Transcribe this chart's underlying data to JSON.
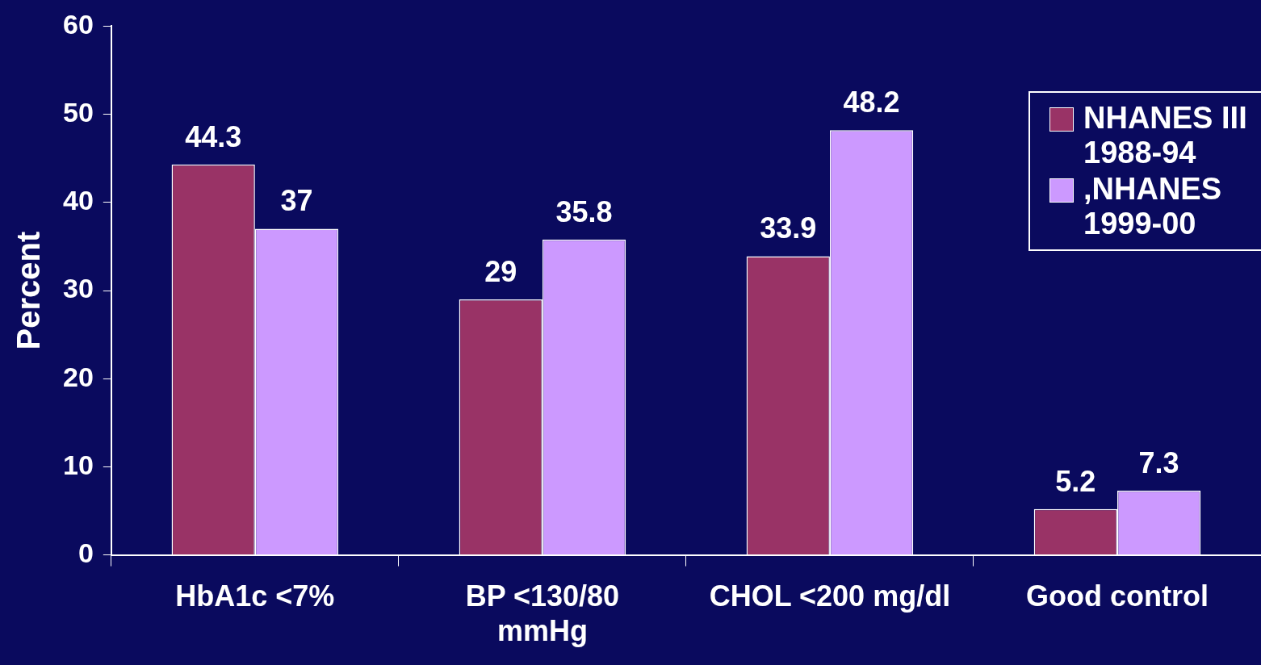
{
  "chart_data": {
    "type": "bar",
    "ylabel": "Percent",
    "categories": [
      "HbA1c <7%",
      "BP <130/80 mmHg",
      "CHOL <200 mg/dl",
      "Good control"
    ],
    "series": [
      {
        "name": "NHANES III 1988-94",
        "color": "#993366",
        "values": [
          44.3,
          29,
          33.9,
          5.2
        ]
      },
      {
        "name": ",NHANES 1999-00",
        "color": "#cc99ff",
        "values": [
          37,
          35.8,
          48.2,
          7.3
        ]
      }
    ],
    "ylim": [
      0,
      60
    ],
    "yticks": [
      0,
      10,
      20,
      30,
      40,
      50,
      60
    ],
    "grid": false,
    "legend": "top right",
    "data_labels": true
  }
}
